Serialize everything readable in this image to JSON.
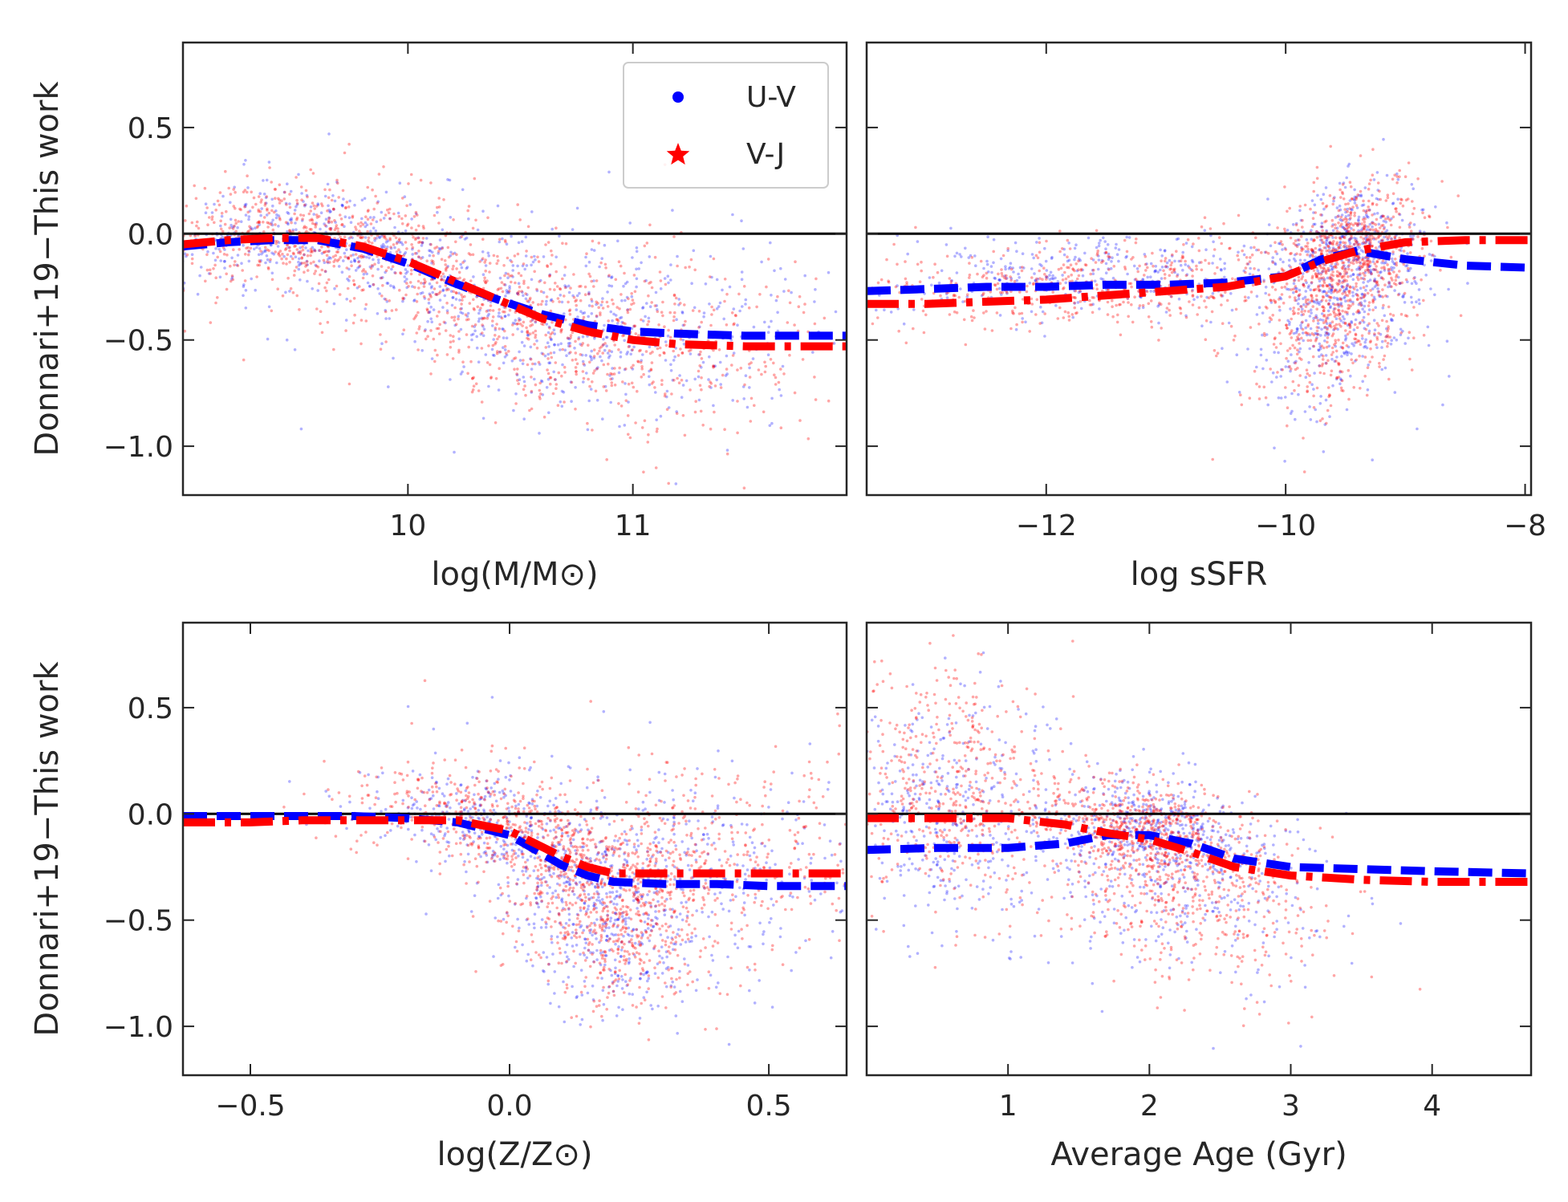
{
  "figure": {
    "ylabel": "Donnari+19−This work",
    "legend": {
      "placement": "top-right of first panel",
      "entries": [
        "U-V",
        "V-J"
      ]
    },
    "colors": {
      "U-V": "#0000ff",
      "V-J": "#ff0000",
      "zero_line": "#000000"
    }
  },
  "chart_data": [
    {
      "type": "scatter",
      "xlabel": "log(M/M⊙)",
      "ylabel": "Donnari+19−This work",
      "xlim": [
        9.0,
        11.95
      ],
      "ylim": [
        -1.23,
        0.9
      ],
      "xticks": [
        10,
        11
      ],
      "xtick_labels": [
        "10",
        "11"
      ],
      "yticks": [
        -1.0,
        -0.5,
        0.0,
        0.5
      ],
      "ytick_labels": [
        "−1.0",
        "−0.5",
        "0.0",
        "0.5"
      ],
      "reference_line_y": 0.0,
      "grid": false,
      "series": [
        {
          "name": "U-V",
          "marker": "dot",
          "trend_style": "dashed",
          "trend": {
            "x": [
              9.0,
              9.2,
              9.4,
              9.6,
              9.8,
              10.0,
              10.2,
              10.4,
              10.6,
              10.8,
              11.0,
              11.2,
              11.5,
              11.95
            ],
            "y": [
              -0.06,
              -0.04,
              -0.03,
              -0.03,
              -0.07,
              -0.14,
              -0.23,
              -0.31,
              -0.38,
              -0.43,
              -0.46,
              -0.47,
              -0.48,
              -0.48
            ]
          }
        },
        {
          "name": "V-J",
          "marker": "star",
          "trend_style": "dashdot",
          "trend": {
            "x": [
              9.0,
              9.2,
              9.4,
              9.6,
              9.8,
              10.0,
              10.2,
              10.4,
              10.6,
              10.8,
              11.0,
              11.2,
              11.5,
              11.95
            ],
            "y": [
              -0.05,
              -0.03,
              -0.02,
              -0.02,
              -0.06,
              -0.13,
              -0.22,
              -0.31,
              -0.4,
              -0.46,
              -0.5,
              -0.52,
              -0.53,
              -0.53
            ]
          }
        }
      ]
    },
    {
      "type": "scatter",
      "xlabel": "log sSFR",
      "ylabel": "",
      "xlim": [
        -13.5,
        -7.95
      ],
      "ylim": [
        -1.23,
        0.9
      ],
      "xticks": [
        -12,
        -10,
        -8
      ],
      "xtick_labels": [
        "−12",
        "−10",
        "−8"
      ],
      "yticks": [
        -1.0,
        -0.5,
        0.0,
        0.5
      ],
      "ytick_labels": [],
      "reference_line_y": 0.0,
      "grid": false,
      "series": [
        {
          "name": "U-V",
          "marker": "dot",
          "trend_style": "dashed",
          "trend": {
            "x": [
              -13.5,
              -13.0,
              -12.5,
              -12.0,
              -11.5,
              -11.0,
              -10.5,
              -10.0,
              -9.7,
              -9.4,
              -9.0,
              -8.5,
              -7.95
            ],
            "y": [
              -0.27,
              -0.26,
              -0.25,
              -0.25,
              -0.24,
              -0.24,
              -0.23,
              -0.2,
              -0.12,
              -0.08,
              -0.12,
              -0.15,
              -0.16
            ]
          }
        },
        {
          "name": "V-J",
          "marker": "star",
          "trend_style": "dashdot",
          "trend": {
            "x": [
              -13.5,
              -13.0,
              -12.5,
              -12.0,
              -11.5,
              -11.0,
              -10.5,
              -10.0,
              -9.7,
              -9.4,
              -9.0,
              -8.5,
              -7.95
            ],
            "y": [
              -0.33,
              -0.33,
              -0.32,
              -0.31,
              -0.29,
              -0.27,
              -0.25,
              -0.2,
              -0.13,
              -0.08,
              -0.04,
              -0.03,
              -0.03
            ]
          }
        }
      ]
    },
    {
      "type": "scatter",
      "xlabel": "log(Z/Z⊙)",
      "ylabel": "Donnari+19−This work",
      "xlim": [
        -0.63,
        0.65
      ],
      "ylim": [
        -1.23,
        0.9
      ],
      "xticks": [
        -0.5,
        0.0,
        0.5
      ],
      "xtick_labels": [
        "−0.5",
        "0.0",
        "0.5"
      ],
      "yticks": [
        -1.0,
        -0.5,
        0.0,
        0.5
      ],
      "ytick_labels": [
        "−1.0",
        "−0.5",
        "0.0",
        "0.5"
      ],
      "reference_line_y": 0.0,
      "grid": false,
      "series": [
        {
          "name": "U-V",
          "marker": "dot",
          "trend_style": "dashed",
          "trend": {
            "x": [
              -0.63,
              -0.5,
              -0.4,
              -0.3,
              -0.2,
              -0.1,
              0.0,
              0.05,
              0.1,
              0.15,
              0.2,
              0.3,
              0.4,
              0.5,
              0.65
            ],
            "y": [
              -0.01,
              -0.01,
              -0.01,
              -0.01,
              -0.02,
              -0.04,
              -0.1,
              -0.17,
              -0.24,
              -0.29,
              -0.32,
              -0.33,
              -0.33,
              -0.34,
              -0.34
            ]
          }
        },
        {
          "name": "V-J",
          "marker": "star",
          "trend_style": "dashdot",
          "trend": {
            "x": [
              -0.63,
              -0.5,
              -0.4,
              -0.3,
              -0.2,
              -0.1,
              0.0,
              0.05,
              0.1,
              0.15,
              0.2,
              0.3,
              0.4,
              0.5,
              0.65
            ],
            "y": [
              -0.04,
              -0.04,
              -0.03,
              -0.03,
              -0.03,
              -0.03,
              -0.08,
              -0.14,
              -0.2,
              -0.25,
              -0.28,
              -0.28,
              -0.28,
              -0.28,
              -0.28
            ]
          }
        }
      ]
    },
    {
      "type": "scatter",
      "xlabel": "Average Age (Gyr)",
      "ylabel": "",
      "xlim": [
        0.0,
        4.7
      ],
      "ylim": [
        -1.23,
        0.9
      ],
      "xticks": [
        1,
        2,
        3,
        4
      ],
      "xtick_labels": [
        "1",
        "2",
        "3",
        "4"
      ],
      "yticks": [
        -1.0,
        -0.5,
        0.0,
        0.5
      ],
      "ytick_labels": [],
      "reference_line_y": 0.0,
      "grid": false,
      "series": [
        {
          "name": "U-V",
          "marker": "dot",
          "trend_style": "dashed",
          "trend": {
            "x": [
              0.0,
              0.5,
              1.0,
              1.4,
              1.7,
              2.0,
              2.3,
              2.6,
              3.0,
              3.5,
              4.0,
              4.7
            ],
            "y": [
              -0.17,
              -0.16,
              -0.16,
              -0.14,
              -0.1,
              -0.1,
              -0.14,
              -0.21,
              -0.25,
              -0.26,
              -0.27,
              -0.28
            ]
          }
        },
        {
          "name": "V-J",
          "marker": "star",
          "trend_style": "dashdot",
          "trend": {
            "x": [
              0.0,
              0.5,
              1.0,
              1.4,
              1.7,
              2.0,
              2.3,
              2.6,
              3.0,
              3.5,
              4.0,
              4.7
            ],
            "y": [
              -0.02,
              -0.02,
              -0.02,
              -0.05,
              -0.09,
              -0.12,
              -0.18,
              -0.25,
              -0.29,
              -0.31,
              -0.32,
              -0.32
            ]
          }
        }
      ]
    }
  ]
}
